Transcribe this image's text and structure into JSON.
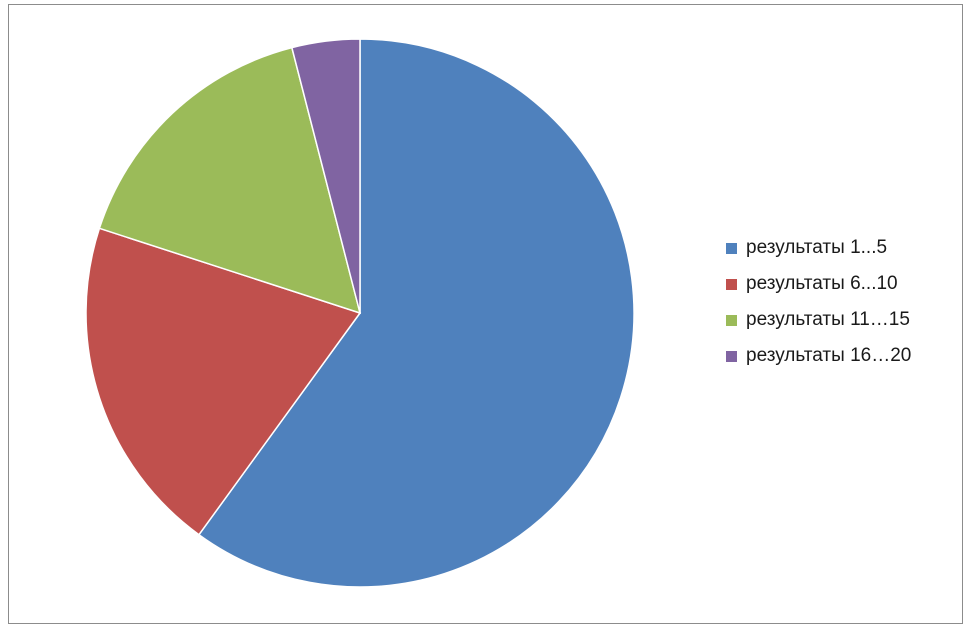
{
  "chart_data": {
    "type": "pie",
    "start_angle_deg": 0,
    "direction": "clockwise",
    "legend_position": "right",
    "categories": [
      "результаты 1...5",
      "результаты 6...10",
      "результаты 11…15",
      "результаты 16…20"
    ],
    "values": [
      60,
      20,
      16,
      4
    ],
    "colors": [
      "#4F81BD",
      "#C0504D",
      "#9BBB59",
      "#8064A2"
    ]
  }
}
